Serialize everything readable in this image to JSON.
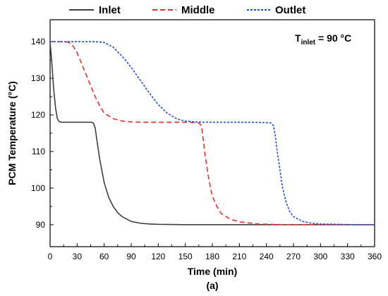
{
  "chart_data": {
    "type": "line",
    "xlabel": "Time (min)",
    "ylabel": "PCM Temperature (°C)",
    "caption": "(a)",
    "xlim": [
      0,
      360
    ],
    "ylim": [
      84,
      146
    ],
    "xticks": [
      0,
      30,
      60,
      90,
      120,
      150,
      180,
      210,
      240,
      270,
      300,
      330,
      360
    ],
    "yticks": [
      90,
      100,
      110,
      120,
      130,
      140
    ],
    "grid": false,
    "legend_position": "top",
    "annotation": {
      "main": "T",
      "sub": "inlet",
      "rest": " = 90 °C"
    },
    "colors": {
      "inlet": "#404040",
      "middle": "#e03030",
      "outlet": "#1f4fd0"
    },
    "series": [
      {
        "name": "Inlet",
        "style": "solid",
        "x": [
          0,
          2,
          4,
          6,
          8,
          10,
          12,
          20,
          30,
          40,
          46,
          48,
          50,
          52,
          55,
          60,
          65,
          70,
          75,
          80,
          90,
          100,
          110,
          120,
          150,
          200,
          250,
          300,
          360
        ],
        "y": [
          140,
          134,
          127,
          122,
          119,
          118.2,
          118,
          118,
          118,
          118,
          118,
          117.8,
          116.5,
          113,
          108,
          101.5,
          97.5,
          95,
          93.3,
          92.2,
          90.9,
          90.4,
          90.2,
          90.1,
          90,
          90,
          90,
          90,
          90
        ]
      },
      {
        "name": "Middle",
        "style": "dashed",
        "x": [
          0,
          10,
          20,
          25,
          30,
          35,
          40,
          45,
          50,
          55,
          60,
          70,
          80,
          90,
          100,
          120,
          150,
          160,
          165,
          168,
          170,
          172,
          175,
          178,
          180,
          185,
          190,
          200,
          210,
          230,
          260,
          300,
          360
        ],
        "y": [
          140,
          140,
          139.9,
          139,
          137,
          134,
          131,
          128,
          125,
          122.5,
          120.5,
          119,
          118.3,
          118.1,
          118,
          118,
          118,
          117.9,
          117.8,
          117,
          113,
          109,
          104,
          100,
          97.8,
          95,
          93,
          91.5,
          90.8,
          90.2,
          90,
          90,
          90
        ]
      },
      {
        "name": "Outlet",
        "style": "dotted",
        "x": [
          0,
          30,
          50,
          60,
          70,
          80,
          90,
          100,
          110,
          120,
          130,
          140,
          150,
          160,
          170,
          180,
          200,
          220,
          240,
          245,
          248,
          250,
          252,
          255,
          258,
          262,
          266,
          270,
          280,
          290,
          300,
          320,
          340,
          360
        ],
        "y": [
          140,
          140,
          140,
          139.8,
          138.5,
          136,
          133,
          129.5,
          126,
          122.8,
          120.5,
          119,
          118.3,
          118.1,
          118,
          118,
          118,
          118,
          117.9,
          117.8,
          117,
          114,
          110,
          105,
          100,
          96,
          93.5,
          92.2,
          90.9,
          90.4,
          90.2,
          90.1,
          90,
          90
        ]
      }
    ]
  }
}
